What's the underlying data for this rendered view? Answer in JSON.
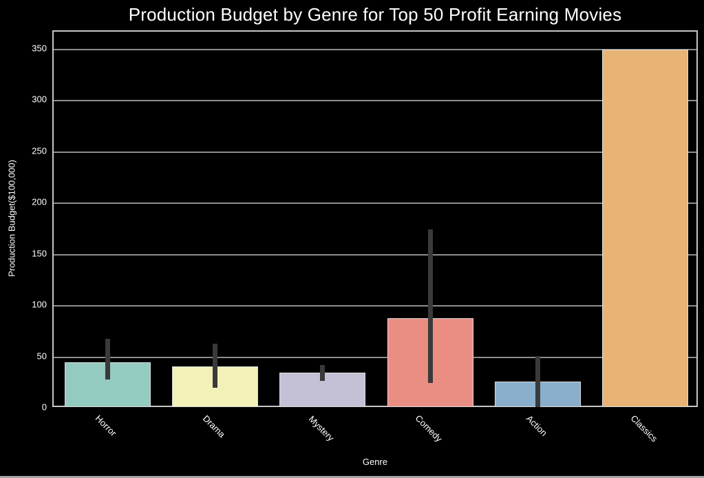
{
  "chart_data": {
    "type": "bar",
    "title": "Production Budget by Genre for Top 50 Profit Earning Movies",
    "xlabel": "Genre",
    "ylabel": "Production Budget($100,000)",
    "categories": [
      "Horror",
      "Drama",
      "Mystery",
      "Comedy",
      "Action",
      "Classics"
    ],
    "values": [
      45,
      41,
      35,
      88,
      26,
      350
    ],
    "error_bars": [
      [
        28,
        68
      ],
      [
        20,
        63
      ],
      [
        27,
        42
      ],
      [
        25,
        175
      ],
      [
        1,
        51
      ],
      null
    ],
    "bar_colors": [
      "#93cbc0",
      "#f2f2b8",
      "#c4c1d6",
      "#ea8d82",
      "#8aafcd",
      "#e8b476"
    ],
    "yticks": [
      0,
      50,
      100,
      150,
      200,
      250,
      300,
      350
    ],
    "ylim": [
      0,
      367.5
    ],
    "grid": "horizontal",
    "legend": "none",
    "style": {
      "background": "#000000",
      "text_color": "#ffffff",
      "grid_color": "#8e8e8e",
      "spine_color": "#c6c6c6",
      "bar_edge_color": "#dcdcdc",
      "error_bar_color": "#3a3a3a",
      "bar_width_fraction": 0.8
    }
  }
}
